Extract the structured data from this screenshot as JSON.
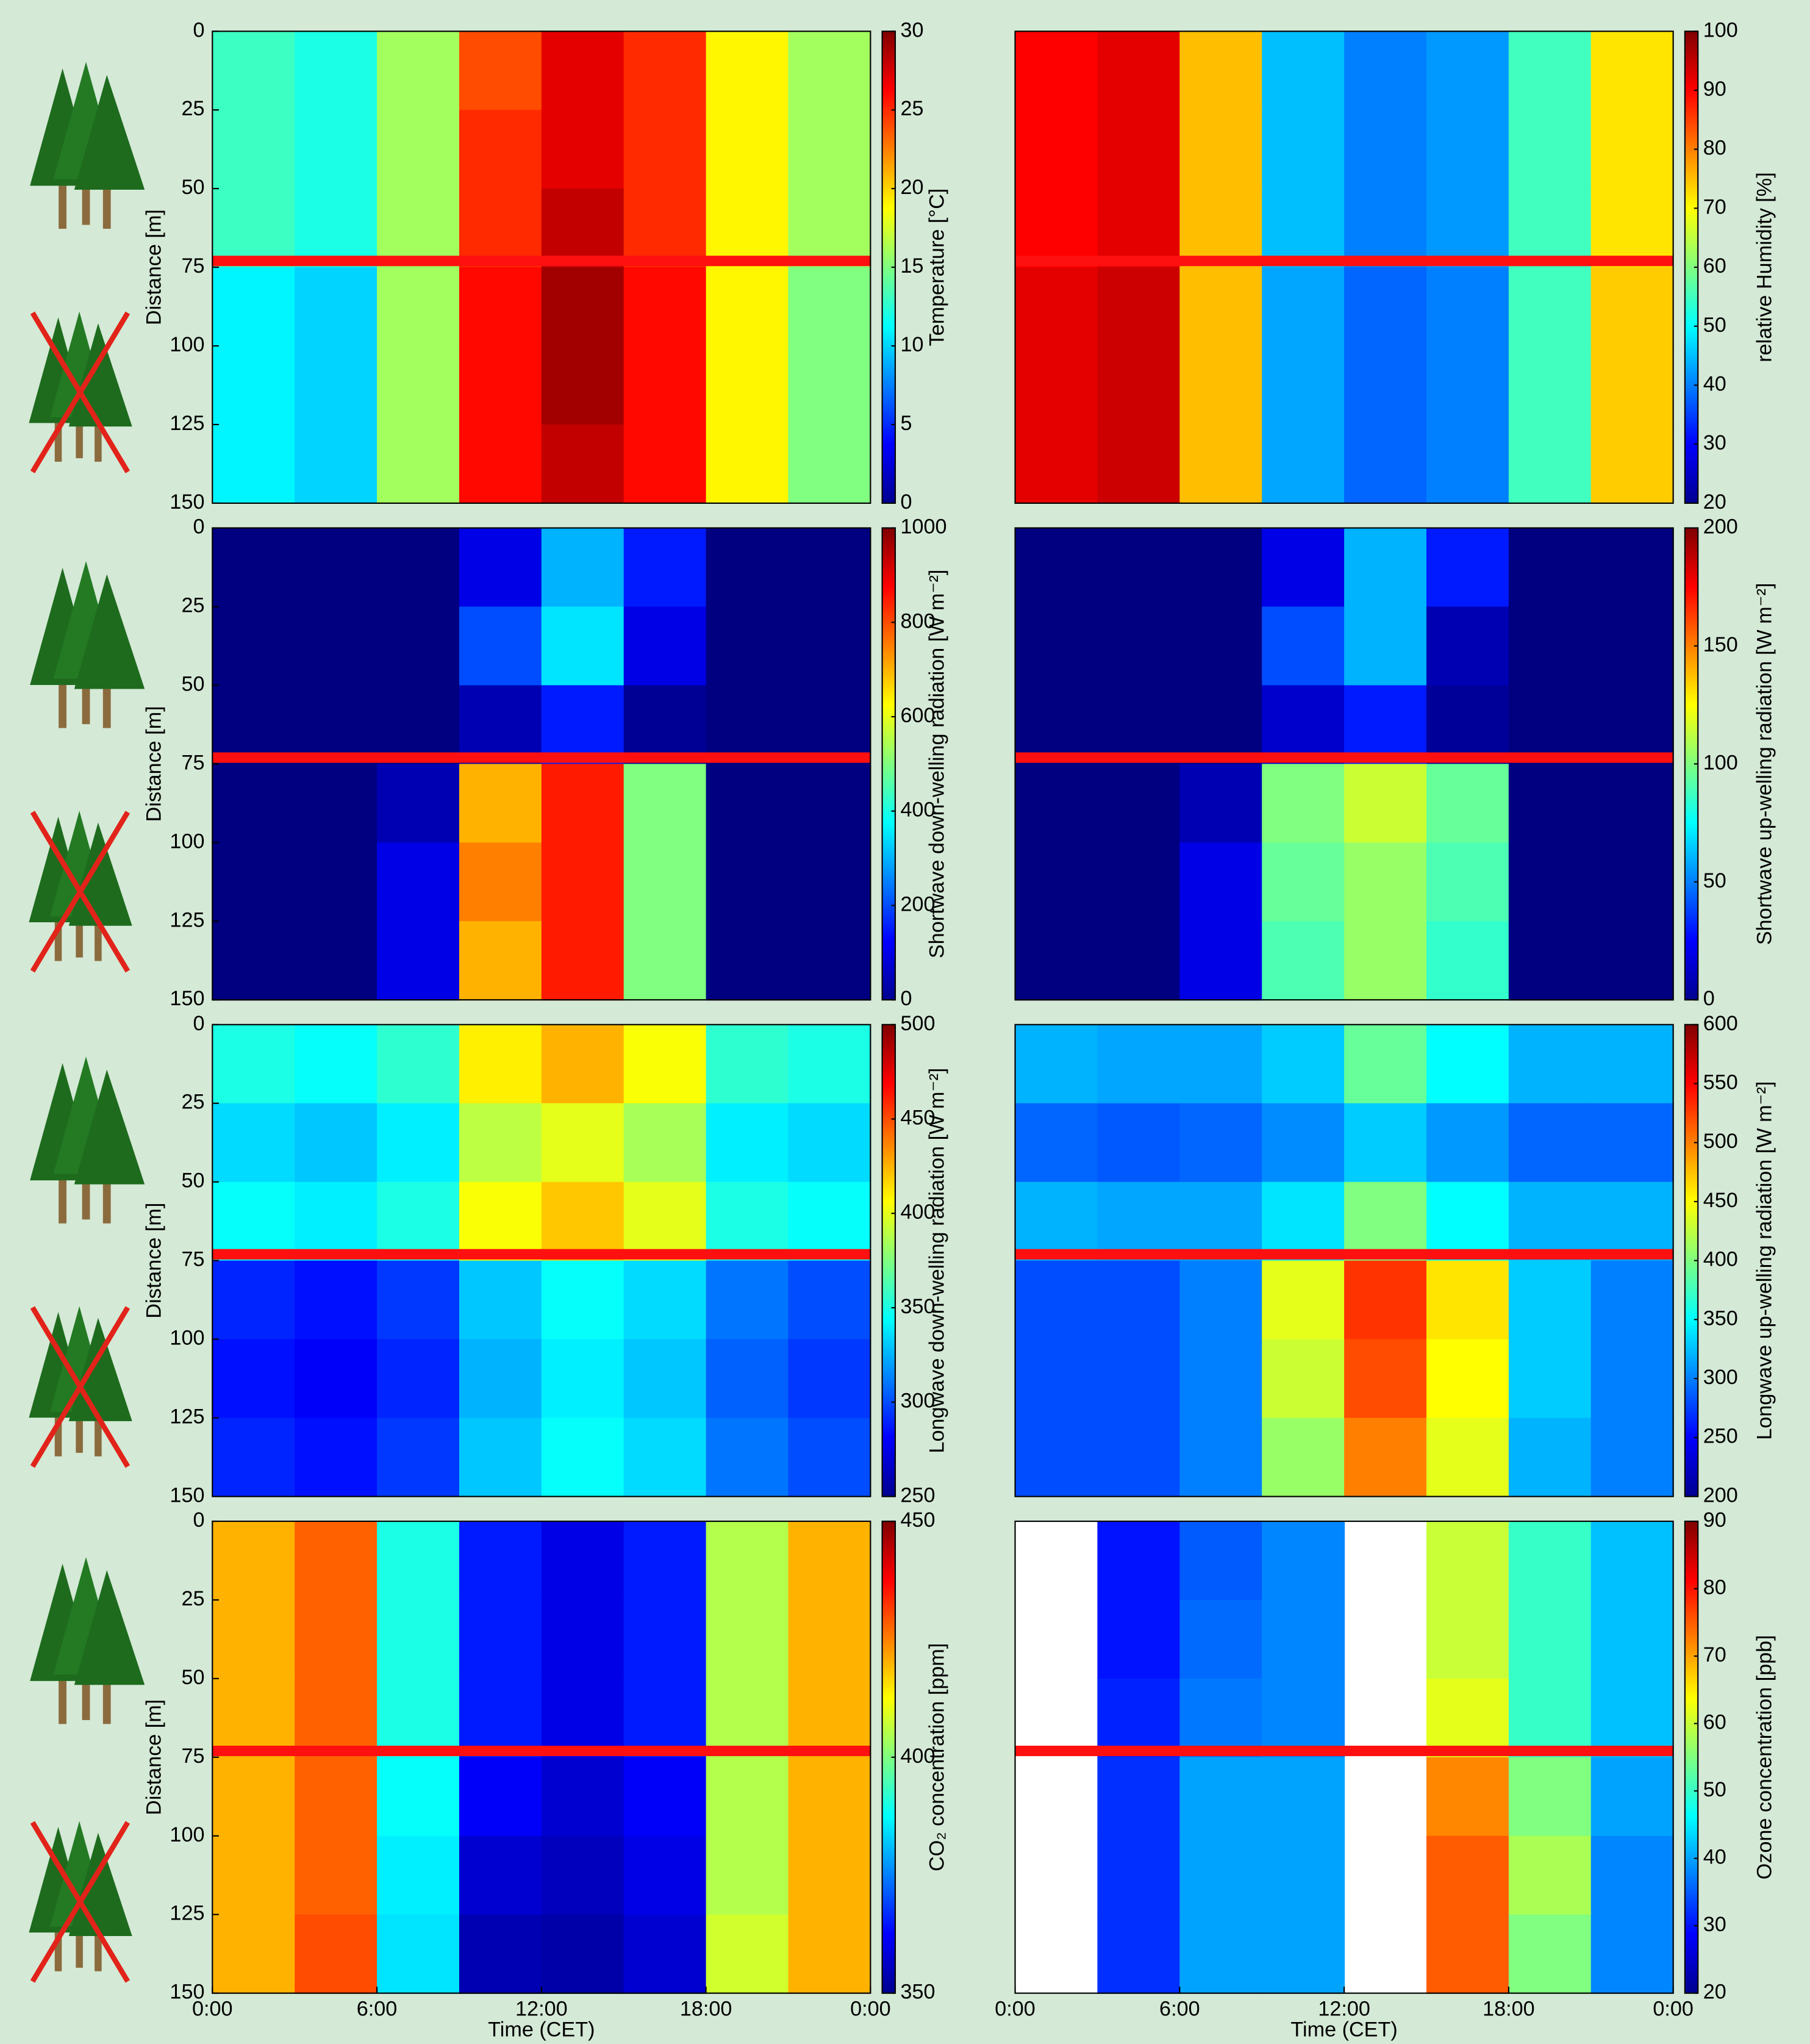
{
  "chart_data": [
    {
      "type": "heatmap",
      "ylabel": "Distance [m]",
      "clabel": "Temperature [°C]",
      "x": [
        1.5,
        4.5,
        7.5,
        10.5,
        13.5,
        16.5,
        19.5,
        22.5
      ],
      "y": [
        12.5,
        37.5,
        62.5,
        87.5,
        112.5,
        137.5
      ],
      "z": [
        [
          13,
          12,
          16,
          24,
          27,
          25,
          19,
          16
        ],
        [
          13,
          12,
          16,
          25,
          27,
          25,
          19,
          16
        ],
        [
          13,
          12,
          16,
          25,
          28,
          25,
          19,
          16
        ],
        [
          11,
          10,
          16,
          26,
          29,
          26,
          19,
          15
        ],
        [
          11,
          10,
          16,
          26,
          29,
          26,
          19,
          15
        ],
        [
          11,
          10,
          16,
          26,
          28,
          26,
          19,
          15
        ]
      ],
      "xlim": [
        0,
        24
      ],
      "ylim": [
        0,
        150
      ],
      "yticks": [
        0,
        25,
        50,
        75,
        100,
        125,
        150
      ],
      "hline": 73,
      "clim": [
        0,
        30
      ],
      "cticks": [
        0,
        5,
        10,
        15,
        20,
        25,
        30
      ]
    },
    {
      "type": "heatmap",
      "clabel": "relative Humidity [%]",
      "x": [
        1.5,
        4.5,
        7.5,
        10.5,
        13.5,
        16.5,
        19.5,
        22.5
      ],
      "y": [
        12.5,
        37.5,
        62.5,
        87.5,
        112.5,
        137.5
      ],
      "z": [
        [
          90,
          92,
          75,
          45,
          40,
          42,
          55,
          72
        ],
        [
          90,
          92,
          75,
          45,
          40,
          42,
          55,
          72
        ],
        [
          90,
          92,
          75,
          45,
          40,
          42,
          55,
          72
        ],
        [
          92,
          94,
          75,
          43,
          38,
          40,
          55,
          74
        ],
        [
          92,
          94,
          75,
          43,
          38,
          40,
          55,
          74
        ],
        [
          92,
          94,
          75,
          43,
          38,
          40,
          55,
          74
        ]
      ],
      "xlim": [
        0,
        24
      ],
      "ylim": [
        0,
        150
      ],
      "hline": 73,
      "clim": [
        20,
        100
      ],
      "cticks": [
        20,
        30,
        40,
        50,
        60,
        70,
        80,
        90,
        100
      ]
    },
    {
      "type": "heatmap",
      "ylabel": "Distance [m]",
      "clabel": "Shortwave down-welling radiation [W m⁻²]",
      "x": [
        1.5,
        4.5,
        7.5,
        10.5,
        13.5,
        16.5,
        19.5,
        22.5
      ],
      "y": [
        12.5,
        37.5,
        62.5,
        87.5,
        112.5,
        137.5
      ],
      "z": [
        [
          0,
          0,
          0,
          100,
          300,
          150,
          0,
          0
        ],
        [
          0,
          0,
          0,
          200,
          350,
          100,
          0,
          0
        ],
        [
          0,
          0,
          0,
          50,
          150,
          20,
          0,
          0
        ],
        [
          0,
          0,
          50,
          700,
          850,
          500,
          0,
          0
        ],
        [
          0,
          0,
          100,
          750,
          850,
          500,
          0,
          0
        ],
        [
          0,
          0,
          100,
          700,
          850,
          500,
          0,
          0
        ]
      ],
      "xlim": [
        0,
        24
      ],
      "ylim": [
        0,
        150
      ],
      "yticks": [
        0,
        25,
        50,
        75,
        100,
        125,
        150
      ],
      "hline": 73,
      "clim": [
        0,
        1000
      ],
      "cticks": [
        0,
        200,
        400,
        600,
        800,
        1000
      ]
    },
    {
      "type": "heatmap",
      "clabel": "Shortwave up-welling radiation [W m⁻²]",
      "x": [
        1.5,
        4.5,
        7.5,
        10.5,
        13.5,
        16.5,
        19.5,
        22.5
      ],
      "y": [
        12.5,
        37.5,
        62.5,
        87.5,
        112.5,
        137.5
      ],
      "z": [
        [
          0,
          0,
          0,
          20,
          60,
          30,
          0,
          0
        ],
        [
          0,
          0,
          0,
          40,
          60,
          10,
          0,
          0
        ],
        [
          0,
          0,
          0,
          15,
          30,
          5,
          0,
          0
        ],
        [
          0,
          0,
          10,
          100,
          115,
          95,
          0,
          0
        ],
        [
          0,
          0,
          20,
          95,
          105,
          90,
          0,
          0
        ],
        [
          0,
          0,
          20,
          90,
          105,
          85,
          0,
          0
        ]
      ],
      "xlim": [
        0,
        24
      ],
      "ylim": [
        0,
        150
      ],
      "hline": 73,
      "clim": [
        0,
        200
      ],
      "cticks": [
        0,
        50,
        100,
        150,
        200
      ]
    },
    {
      "type": "heatmap",
      "ylabel": "Distance [m]",
      "clabel": "Longwave down-welling radiation [W m⁻²]",
      "x": [
        1.5,
        4.5,
        7.5,
        10.5,
        13.5,
        16.5,
        19.5,
        22.5
      ],
      "y": [
        12.5,
        37.5,
        62.5,
        87.5,
        112.5,
        137.5
      ],
      "z": [
        [
          350,
          345,
          355,
          410,
          425,
          405,
          355,
          350
        ],
        [
          335,
          330,
          340,
          390,
          400,
          385,
          340,
          335
        ],
        [
          345,
          340,
          350,
          405,
          420,
          400,
          350,
          345
        ],
        [
          290,
          285,
          295,
          330,
          345,
          335,
          310,
          300
        ],
        [
          285,
          280,
          290,
          325,
          340,
          330,
          305,
          295
        ],
        [
          290,
          285,
          295,
          330,
          345,
          335,
          310,
          300
        ]
      ],
      "xlim": [
        0,
        24
      ],
      "ylim": [
        0,
        150
      ],
      "yticks": [
        0,
        25,
        50,
        75,
        100,
        125,
        150
      ],
      "hline": 73,
      "clim": [
        250,
        500
      ],
      "cticks": [
        250,
        300,
        350,
        400,
        450,
        500
      ]
    },
    {
      "type": "heatmap",
      "clabel": "Longwave up-welling radiation [W m⁻²]",
      "x": [
        1.5,
        4.5,
        7.5,
        10.5,
        13.5,
        16.5,
        19.5,
        22.5
      ],
      "y": [
        12.5,
        37.5,
        62.5,
        87.5,
        112.5,
        137.5
      ],
      "z": [
        [
          320,
          315,
          315,
          330,
          390,
          350,
          320,
          320
        ],
        [
          290,
          285,
          290,
          305,
          330,
          310,
          290,
          290
        ],
        [
          320,
          315,
          315,
          340,
          400,
          350,
          320,
          320
        ],
        [
          280,
          280,
          300,
          440,
          530,
          460,
          330,
          300
        ],
        [
          280,
          280,
          300,
          430,
          520,
          450,
          330,
          300
        ],
        [
          280,
          280,
          300,
          410,
          500,
          440,
          320,
          300
        ]
      ],
      "xlim": [
        0,
        24
      ],
      "ylim": [
        0,
        150
      ],
      "hline": 73,
      "clim": [
        200,
        600
      ],
      "cticks": [
        200,
        250,
        300,
        350,
        400,
        450,
        500,
        550,
        600
      ]
    },
    {
      "type": "heatmap",
      "ylabel": "Distance [m]",
      "xlabel": "Time (CET)",
      "clabel": "CO₂ concentration [ppm]",
      "x": [
        1.5,
        4.5,
        7.5,
        10.5,
        13.5,
        16.5,
        19.5,
        22.5
      ],
      "y": [
        12.5,
        37.5,
        62.5,
        87.5,
        112.5,
        137.5
      ],
      "z": [
        [
          420,
          428,
          390,
          365,
          360,
          365,
          405,
          420
        ],
        [
          420,
          428,
          390,
          365,
          360,
          365,
          405,
          420
        ],
        [
          420,
          428,
          390,
          365,
          360,
          365,
          405,
          420
        ],
        [
          420,
          428,
          388,
          362,
          358,
          362,
          405,
          420
        ],
        [
          420,
          428,
          386,
          358,
          356,
          360,
          405,
          420
        ],
        [
          420,
          430,
          385,
          355,
          354,
          358,
          408,
          420
        ]
      ],
      "xlim": [
        0,
        24
      ],
      "ylim": [
        0,
        150
      ],
      "xticks": [
        {
          "value": 0,
          "label": "0:00"
        },
        {
          "value": 6,
          "label": "6:00"
        },
        {
          "value": 12,
          "label": "12:00"
        },
        {
          "value": 18,
          "label": "18:00"
        },
        {
          "value": 24,
          "label": "0:00"
        }
      ],
      "yticks": [
        0,
        25,
        50,
        75,
        100,
        125,
        150
      ],
      "hline": 73,
      "clim": [
        350,
        450
      ],
      "cticks": [
        350,
        400,
        450
      ]
    },
    {
      "type": "heatmap",
      "xlabel": "Time (CET)",
      "clabel": "Ozone concentration [ppb]",
      "x": [
        1.5,
        4.5,
        7.5,
        10.5,
        13.5,
        16.5,
        19.5,
        22.5
      ],
      "y": [
        12.5,
        37.5,
        62.5,
        87.5,
        112.5,
        137.5
      ],
      "z": [
        [
          null,
          30,
          35,
          38,
          null,
          60,
          50,
          42
        ],
        [
          null,
          30,
          36,
          38,
          null,
          60,
          50,
          42
        ],
        [
          null,
          31,
          37,
          38,
          null,
          62,
          50,
          42
        ],
        [
          null,
          32,
          40,
          40,
          null,
          72,
          55,
          40
        ],
        [
          null,
          32,
          40,
          40,
          null,
          75,
          58,
          38
        ],
        [
          null,
          32,
          40,
          40,
          null,
          75,
          55,
          38
        ]
      ],
      "xlim": [
        0,
        24
      ],
      "ylim": [
        0,
        150
      ],
      "xticks": [
        {
          "value": 0,
          "label": "0:00"
        },
        {
          "value": 6,
          "label": "6:00"
        },
        {
          "value": 12,
          "label": "12:00"
        },
        {
          "value": 18,
          "label": "18:00"
        },
        {
          "value": 24,
          "label": "0:00"
        }
      ],
      "hline": 73,
      "clim": [
        20,
        90
      ],
      "cticks": [
        20,
        30,
        40,
        50,
        60,
        70,
        80,
        90
      ]
    }
  ]
}
